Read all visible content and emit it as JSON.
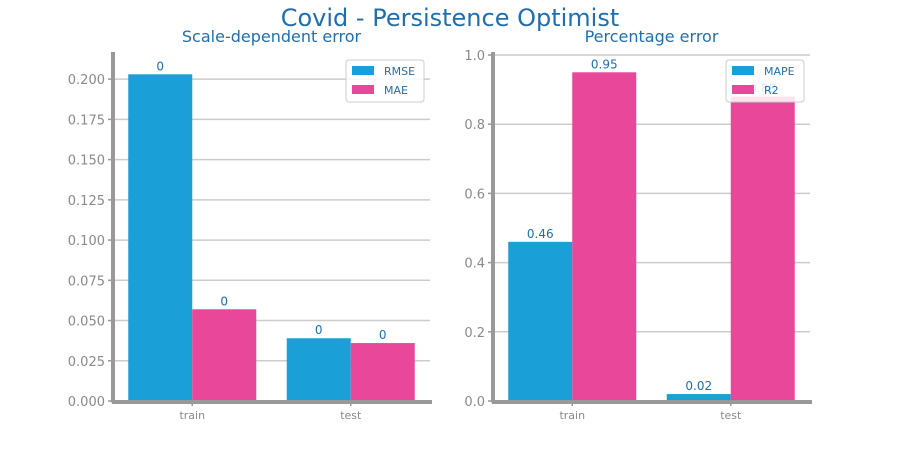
{
  "title": "Covid - Persistence Optimist",
  "colors": {
    "title": "#1f6fb0",
    "axis": "#999999",
    "grid": "#cccccc",
    "tick": "#8a8a8a",
    "label": "#1f6fb0"
  },
  "chart_data": [
    {
      "type": "bar",
      "title": "Scale-dependent error",
      "categories": [
        "train",
        "test"
      ],
      "series": [
        {
          "name": "RMSE",
          "color": "#1a9fd6",
          "values": [
            0.203,
            0.039
          ],
          "labels": [
            "0",
            "0"
          ]
        },
        {
          "name": "MAE",
          "color": "#e8479a",
          "values": [
            0.057,
            0.036
          ],
          "labels": [
            "0",
            "0"
          ]
        }
      ],
      "ylim": [
        0,
        0.215
      ],
      "yticks": [
        0.0,
        0.025,
        0.05,
        0.075,
        0.1,
        0.125,
        0.15,
        0.175,
        0.2
      ],
      "ytick_labels": [
        "0.000",
        "0.025",
        "0.050",
        "0.075",
        "0.100",
        "0.125",
        "0.150",
        "0.175",
        "0.200"
      ],
      "grid": true,
      "legend": "top-right"
    },
    {
      "type": "bar",
      "title": "Percentage error",
      "categories": [
        "train",
        "test"
      ],
      "series": [
        {
          "name": "MAPE",
          "color": "#1a9fd6",
          "values": [
            0.46,
            0.02
          ],
          "labels": [
            "0.46",
            "0.02"
          ]
        },
        {
          "name": "R2",
          "color": "#e8479a",
          "values": [
            0.95,
            0.88
          ],
          "labels": [
            "0.95",
            "0.88"
          ]
        }
      ],
      "ylim": [
        0,
        1.0
      ],
      "yticks": [
        0.0,
        0.2,
        0.4,
        0.6,
        0.8,
        1.0
      ],
      "ytick_labels": [
        "0.0",
        "0.2",
        "0.4",
        "0.6",
        "0.8",
        "1.0"
      ],
      "grid": true,
      "legend": "top-right"
    }
  ]
}
